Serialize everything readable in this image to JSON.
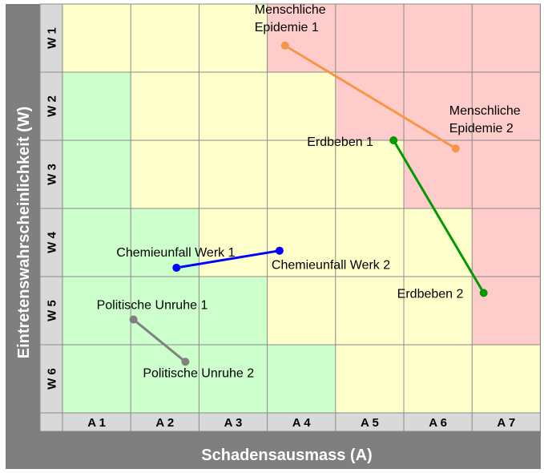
{
  "chart_data": {
    "type": "scatter",
    "xlabel": "Schadensausmass  (A)",
    "ylabel": "Eintretenswahrscheinlichkeit  (W)",
    "x_categories": [
      "A 1",
      "A 2",
      "A 3",
      "A 4",
      "A 5",
      "A 6",
      "A 7"
    ],
    "y_categories": [
      "W 1",
      "W 2",
      "W 3",
      "W 4",
      "W 5",
      "W 6"
    ],
    "colors": {
      "green": "#ccffcc",
      "yellow": "#ffffcc",
      "red": "#ffcccc",
      "frame": "#7f7f7f",
      "axis_band": "#d9d9d9"
    },
    "risk_matrix": [
      [
        "yellow",
        "yellow",
        "yellow",
        "red",
        "red",
        "red",
        "red"
      ],
      [
        "green",
        "yellow",
        "yellow",
        "yellow",
        "red",
        "red",
        "red"
      ],
      [
        "green",
        "yellow",
        "yellow",
        "yellow",
        "yellow",
        "red",
        "red"
      ],
      [
        "green",
        "green",
        "yellow",
        "yellow",
        "yellow",
        "yellow",
        "red"
      ],
      [
        "green",
        "green",
        "green",
        "yellow",
        "yellow",
        "yellow",
        "red"
      ],
      [
        "green",
        "green",
        "green",
        "green",
        "yellow",
        "yellow",
        "yellow"
      ]
    ],
    "series": [
      {
        "color": "#f79646",
        "points": [
          {
            "x": 3.76,
            "y": 1.11,
            "label": "Menschliche\nEpidemie 1"
          },
          {
            "x": 6.26,
            "y": 2.62,
            "label": "Menschliche\nEpidemie 2"
          }
        ]
      },
      {
        "color": "#009900",
        "points": [
          {
            "x": 5.35,
            "y": 2.5,
            "label": "Erdbeben 1"
          },
          {
            "x": 6.67,
            "y": 4.74,
            "label": "Erdbeben 2"
          }
        ]
      },
      {
        "color": "#0000ff",
        "points": [
          {
            "x": 2.17,
            "y": 4.37,
            "label": "Chemieunfall Werk 1"
          },
          {
            "x": 3.68,
            "y": 4.12,
            "label": "Chemieunfall Werk 2"
          }
        ]
      },
      {
        "color": "#808080",
        "points": [
          {
            "x": 1.54,
            "y": 5.13,
            "label": "Politische Unruhe 1"
          },
          {
            "x": 2.3,
            "y": 5.75,
            "label": "Politische Unruhe 2"
          }
        ]
      }
    ]
  }
}
